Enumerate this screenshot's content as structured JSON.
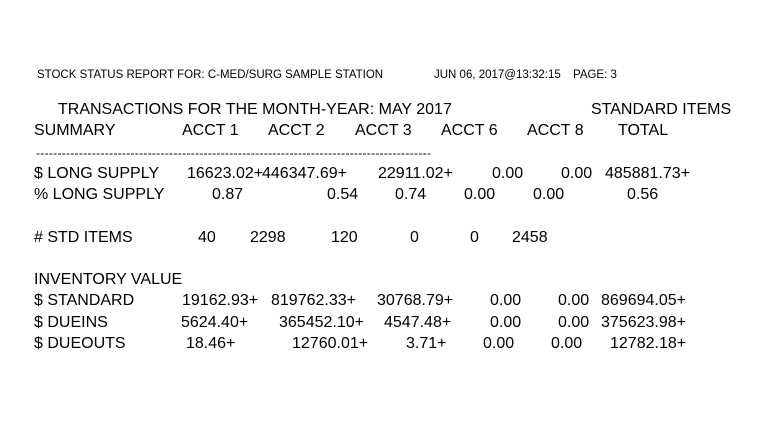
{
  "header": {
    "report_title": "STOCK STATUS REPORT FOR: C-MED/SURG SAMPLE STATION",
    "timestamp": "JUN 06, 2017@13:32:15",
    "page": "PAGE: 3"
  },
  "subtitle": {
    "transactions": "TRANSACTIONS FOR THE MONTH-YEAR: MAY 2017",
    "items_type": "STANDARD ITEMS"
  },
  "columns": {
    "summary": "SUMMARY",
    "acct1": "ACCT 1",
    "acct2": "ACCT 2",
    "acct3": "ACCT 3",
    "acct6": "ACCT 6",
    "acct8": "ACCT 8",
    "total": "TOTAL"
  },
  "separator": "--------------------------------------------------------------------------------------------",
  "rows": {
    "long_supply_dollar": {
      "label": "$ LONG SUPPLY",
      "acct1": "16623.02+",
      "acct2": "446347.69+",
      "acct3": "22911.02+",
      "acct6": "0.00",
      "acct8": "0.00",
      "total": "485881.73+"
    },
    "long_supply_pct": {
      "label": "% LONG SUPPLY",
      "acct1": "0.87",
      "acct2": "0.54",
      "acct3": "0.74",
      "acct6": "0.00",
      "acct8": "0.00",
      "total": "0.56"
    },
    "std_items": {
      "label": "# STD ITEMS",
      "acct1": "40",
      "acct2": "2298",
      "acct3": "120",
      "acct6": "0",
      "acct8": "0",
      "total": "2458"
    },
    "inventory_heading": "INVENTORY VALUE",
    "standard": {
      "label": "$ STANDARD",
      "acct1": "19162.93+",
      "acct2": "819762.33+",
      "acct3": "30768.79+",
      "acct6": "0.00",
      "acct8": "0.00",
      "total": "869694.05+"
    },
    "dueins": {
      "label": "$ DUEINS",
      "acct1": "5624.40+",
      "acct2": "365452.10+",
      "acct3": "4547.48+",
      "acct6": "0.00",
      "acct8": "0.00",
      "total": "375623.98+"
    },
    "dueouts": {
      "label": "$ DUEOUTS",
      "acct1": "18.46+",
      "acct2": "12760.01+",
      "acct3": "3.71+",
      "acct6": "0.00",
      "acct8": "0.00",
      "total": "12782.18+"
    }
  }
}
